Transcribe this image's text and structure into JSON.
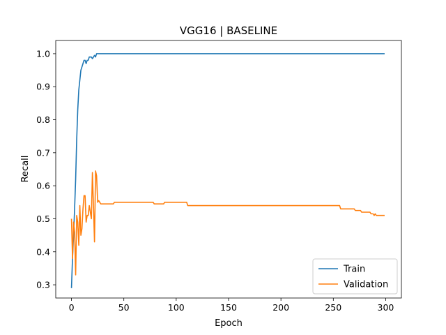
{
  "chart_data": {
    "type": "line",
    "title": "VGG16 | BASELINE",
    "xlabel": "Epoch",
    "ylabel": "Recall",
    "xlim": [
      -15,
      315
    ],
    "ylim": [
      0.26,
      1.04
    ],
    "xticks": [
      0,
      50,
      100,
      150,
      200,
      250,
      300
    ],
    "yticks": [
      0.3,
      0.4,
      0.5,
      0.6,
      0.7,
      0.8,
      0.9,
      1.0
    ],
    "ytick_labels": [
      "0.3",
      "0.4",
      "0.5",
      "0.6",
      "0.7",
      "0.8",
      "0.9",
      "1.0"
    ],
    "grid": false,
    "legend": {
      "placement": "lower-right"
    },
    "series": [
      {
        "name": "Train",
        "color": "#1f77b4",
        "points": [
          [
            0,
            0.29
          ],
          [
            1,
            0.38
          ],
          [
            2,
            0.45
          ],
          [
            3,
            0.53
          ],
          [
            4,
            0.62
          ],
          [
            5,
            0.74
          ],
          [
            6,
            0.83
          ],
          [
            7,
            0.89
          ],
          [
            8,
            0.92
          ],
          [
            9,
            0.95
          ],
          [
            10,
            0.96
          ],
          [
            11,
            0.97
          ],
          [
            12,
            0.98
          ],
          [
            13,
            0.98
          ],
          [
            14,
            0.97
          ],
          [
            15,
            0.98
          ],
          [
            16,
            0.98
          ],
          [
            17,
            0.99
          ],
          [
            18,
            0.99
          ],
          [
            19,
            0.99
          ],
          [
            20,
            0.985
          ],
          [
            21,
            0.99
          ],
          [
            22,
            0.995
          ],
          [
            23,
            0.99
          ],
          [
            24,
            1.0
          ],
          [
            25,
            1.0
          ],
          [
            30,
            1.0
          ],
          [
            50,
            1.0
          ],
          [
            100,
            1.0
          ],
          [
            150,
            1.0
          ],
          [
            200,
            1.0
          ],
          [
            250,
            1.0
          ],
          [
            299,
            1.0
          ]
        ]
      },
      {
        "name": "Validation",
        "color": "#ff7f0e",
        "points": [
          [
            0,
            0.5
          ],
          [
            1,
            0.38
          ],
          [
            2,
            0.49
          ],
          [
            3,
            0.46
          ],
          [
            4,
            0.33
          ],
          [
            5,
            0.51
          ],
          [
            6,
            0.49
          ],
          [
            7,
            0.42
          ],
          [
            8,
            0.54
          ],
          [
            9,
            0.45
          ],
          [
            10,
            0.47
          ],
          [
            11,
            0.53
          ],
          [
            12,
            0.57
          ],
          [
            13,
            0.57
          ],
          [
            14,
            0.49
          ],
          [
            15,
            0.51
          ],
          [
            16,
            0.51
          ],
          [
            17,
            0.54
          ],
          [
            18,
            0.52
          ],
          [
            19,
            0.5
          ],
          [
            20,
            0.64
          ],
          [
            21,
            0.54
          ],
          [
            22,
            0.43
          ],
          [
            23,
            0.645
          ],
          [
            24,
            0.63
          ],
          [
            25,
            0.55
          ],
          [
            26,
            0.555
          ],
          [
            27,
            0.55
          ],
          [
            28,
            0.545
          ],
          [
            30,
            0.545
          ],
          [
            35,
            0.545
          ],
          [
            40,
            0.545
          ],
          [
            41,
            0.55
          ],
          [
            60,
            0.55
          ],
          [
            78,
            0.55
          ],
          [
            79,
            0.545
          ],
          [
            88,
            0.545
          ],
          [
            89,
            0.55
          ],
          [
            110,
            0.55
          ],
          [
            111,
            0.54
          ],
          [
            150,
            0.54
          ],
          [
            200,
            0.54
          ],
          [
            256,
            0.54
          ],
          [
            257,
            0.53
          ],
          [
            270,
            0.53
          ],
          [
            271,
            0.525
          ],
          [
            276,
            0.525
          ],
          [
            277,
            0.52
          ],
          [
            285,
            0.52
          ],
          [
            286,
            0.515
          ],
          [
            288,
            0.515
          ],
          [
            289,
            0.51
          ],
          [
            290,
            0.515
          ],
          [
            291,
            0.51
          ],
          [
            299,
            0.51
          ]
        ]
      }
    ]
  }
}
